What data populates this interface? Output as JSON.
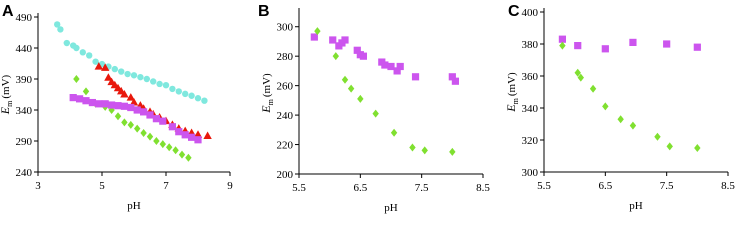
{
  "chart_data": [
    {
      "type": "scatter",
      "panel_label": "A",
      "xlabel": "pH",
      "ylabel": {
        "symbol": "E",
        "subscript": "m",
        "unit": "(mV)"
      },
      "xlim": [
        3,
        9
      ],
      "xticks": [
        3,
        5,
        7,
        9
      ],
      "ylim": [
        240,
        490
      ],
      "yticks": [
        240,
        290,
        340,
        390,
        440,
        490
      ],
      "series": [
        {
          "color": "#7fe8de",
          "marker": "circle",
          "x": [
            3.6,
            3.7,
            3.9,
            4.1,
            4.2,
            4.4,
            4.6,
            4.8,
            5.0,
            5.2,
            5.4,
            5.6,
            5.8,
            6.0,
            6.2,
            6.4,
            6.6,
            6.8,
            7.0,
            7.2,
            7.4,
            7.6,
            7.8,
            8.0,
            8.2
          ],
          "values": [
            478,
            470,
            448,
            444,
            440,
            433,
            428,
            418,
            414,
            410,
            406,
            402,
            398,
            396,
            393,
            390,
            386,
            382,
            380,
            374,
            370,
            366,
            363,
            359,
            355
          ]
        },
        {
          "color": "#e8180c",
          "marker": "triangle",
          "x": [
            4.9,
            5.1,
            5.2,
            5.3,
            5.4,
            5.5,
            5.6,
            5.7,
            5.9,
            6.0,
            6.2,
            6.3,
            6.5,
            6.6,
            6.8,
            7.0,
            7.2,
            7.4,
            7.6,
            7.8,
            8.0,
            8.3
          ],
          "values": [
            410,
            408,
            392,
            385,
            380,
            375,
            370,
            365,
            360,
            352,
            347,
            342,
            337,
            333,
            328,
            322,
            316,
            310,
            306,
            303,
            300,
            298
          ]
        },
        {
          "color": "#80e030",
          "marker": "diamond",
          "x": [
            4.2,
            4.5,
            4.8,
            5.1,
            5.3,
            5.5,
            5.7,
            5.9,
            6.1,
            6.3,
            6.5,
            6.7,
            6.9,
            7.1,
            7.3,
            7.5,
            7.7
          ],
          "values": [
            390,
            370,
            350,
            345,
            340,
            330,
            320,
            316,
            310,
            303,
            297,
            290,
            285,
            280,
            275,
            268,
            263
          ]
        },
        {
          "color": "#cc55ee",
          "marker": "square",
          "x": [
            4.1,
            4.3,
            4.5,
            4.7,
            4.9,
            5.1,
            5.3,
            5.5,
            5.7,
            5.9,
            6.1,
            6.3,
            6.5,
            6.7,
            6.9,
            7.2,
            7.4,
            7.6,
            7.8,
            8.0
          ],
          "values": [
            360,
            358,
            355,
            352,
            350,
            350,
            348,
            347,
            346,
            344,
            340,
            337,
            332,
            326,
            322,
            313,
            305,
            300,
            296,
            292
          ]
        }
      ]
    },
    {
      "type": "scatter",
      "panel_label": "B",
      "xlabel": "pH",
      "ylabel": {
        "symbol": "E",
        "subscript": "m",
        "unit": "(mV)"
      },
      "xlim": [
        5.5,
        8.5
      ],
      "xticks": [
        5.5,
        6.5,
        7.5,
        8.5
      ],
      "ylim": [
        200,
        310
      ],
      "yticks": [
        200,
        220,
        240,
        260,
        280,
        300
      ],
      "series": [
        {
          "color": "#cc55ee",
          "marker": "square",
          "x": [
            5.75,
            6.05,
            6.15,
            6.2,
            6.25,
            6.45,
            6.5,
            6.55,
            6.85,
            6.9,
            7.0,
            7.1,
            7.15,
            7.4,
            8.0,
            8.05
          ],
          "values": [
            293,
            291,
            287,
            289,
            291,
            284,
            281,
            280,
            276,
            274,
            273,
            270,
            273,
            266,
            266,
            263
          ]
        },
        {
          "color": "#80e030",
          "marker": "diamond",
          "x": [
            5.8,
            6.1,
            6.25,
            6.35,
            6.5,
            6.75,
            7.05,
            7.35,
            7.55,
            8.0
          ],
          "values": [
            297,
            280,
            264,
            258,
            251,
            241,
            228,
            218,
            216,
            215
          ]
        }
      ]
    },
    {
      "type": "scatter",
      "panel_label": "C",
      "xlabel": "pH",
      "ylabel": {
        "symbol": "E",
        "subscript": "m",
        "unit": "(mV)"
      },
      "xlim": [
        5.5,
        8.5
      ],
      "xticks": [
        5.5,
        6.5,
        7.5,
        8.5
      ],
      "ylim": [
        300,
        400
      ],
      "yticks": [
        300,
        320,
        340,
        360,
        380,
        400
      ],
      "series": [
        {
          "color": "#cc55ee",
          "marker": "square",
          "x": [
            5.8,
            6.05,
            6.5,
            6.95,
            7.5,
            8.0
          ],
          "values": [
            383,
            379,
            377,
            381,
            380,
            378
          ]
        },
        {
          "color": "#80e030",
          "marker": "diamond",
          "x": [
            5.8,
            6.05,
            6.1,
            6.3,
            6.5,
            6.75,
            6.95,
            7.35,
            7.55,
            8.0
          ],
          "values": [
            379,
            362,
            359,
            352,
            341,
            333,
            329,
            322,
            316,
            315
          ]
        }
      ]
    }
  ]
}
